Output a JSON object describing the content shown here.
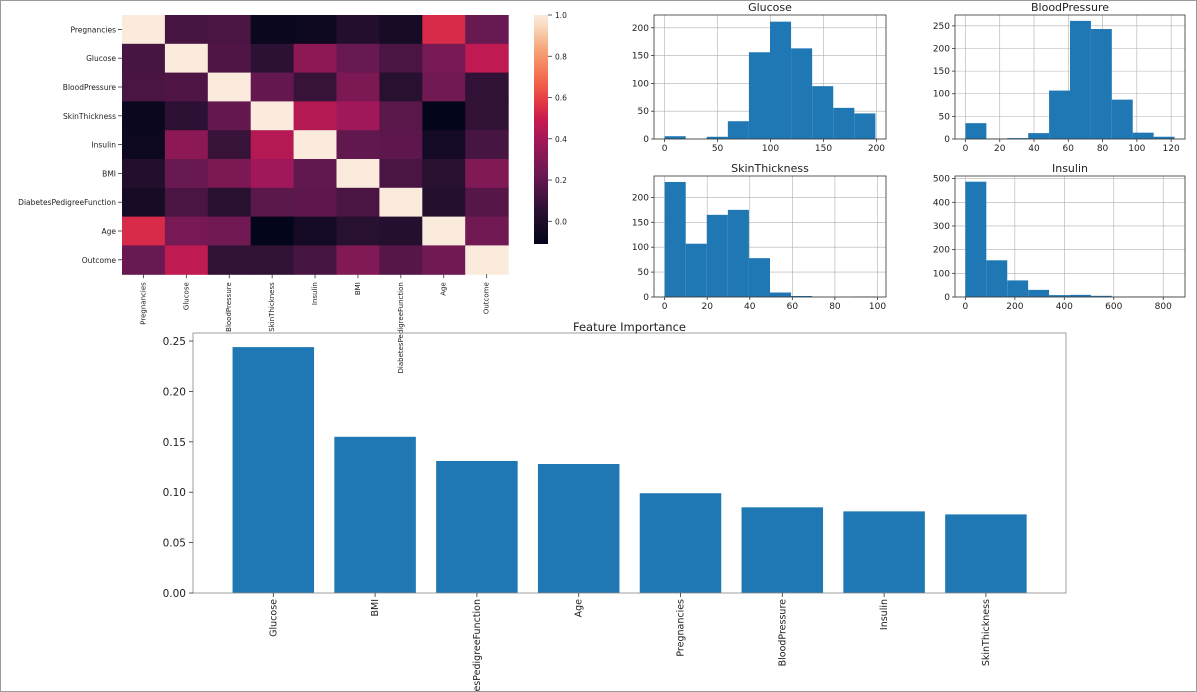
{
  "colors": {
    "bar_fill": "#1f77b4",
    "heatmap_colormap": "rocket",
    "grid": "#b0b0b0"
  },
  "chart_data": [
    {
      "type": "heatmap",
      "title": "",
      "labels": [
        "Pregnancies",
        "Glucose",
        "BloodPressure",
        "SkinThickness",
        "Insulin",
        "BMI",
        "DiabetesPedigreeFunction",
        "Age",
        "Outcome"
      ],
      "matrix": [
        [
          1.0,
          0.13,
          0.14,
          -0.08,
          -0.07,
          0.02,
          -0.03,
          0.54,
          0.22
        ],
        [
          0.13,
          1.0,
          0.15,
          0.06,
          0.33,
          0.22,
          0.14,
          0.26,
          0.47
        ],
        [
          0.14,
          0.15,
          1.0,
          0.21,
          0.09,
          0.28,
          0.04,
          0.24,
          0.07
        ],
        [
          -0.08,
          0.06,
          0.21,
          1.0,
          0.44,
          0.39,
          0.18,
          -0.11,
          0.07
        ],
        [
          -0.07,
          0.33,
          0.09,
          0.44,
          1.0,
          0.2,
          0.19,
          -0.04,
          0.13
        ],
        [
          0.02,
          0.22,
          0.28,
          0.39,
          0.2,
          1.0,
          0.14,
          0.04,
          0.29
        ],
        [
          -0.03,
          0.14,
          0.04,
          0.18,
          0.19,
          0.14,
          1.0,
          0.03,
          0.17
        ],
        [
          0.54,
          0.26,
          0.24,
          -0.11,
          -0.04,
          0.04,
          0.03,
          1.0,
          0.24
        ],
        [
          0.22,
          0.47,
          0.07,
          0.07,
          0.13,
          0.29,
          0.17,
          0.24,
          1.0
        ]
      ],
      "colorbar_ticks": [
        "0.0",
        "0.2",
        "0.4",
        "0.6",
        "0.8",
        "1.0"
      ],
      "vmin": -0.11,
      "vmax": 1.0
    },
    {
      "type": "bar",
      "subtype": "histogram",
      "title": "Glucose",
      "bin_edges": [
        0,
        19.9,
        39.8,
        59.7,
        79.6,
        99.5,
        119.4,
        139.3,
        159.2,
        179.1,
        199
      ],
      "values": [
        5,
        0,
        4,
        32,
        156,
        211,
        163,
        95,
        56,
        46
      ],
      "xlim": [
        -10,
        209
      ],
      "ylim": [
        0,
        223
      ],
      "xticks": [
        0,
        50,
        100,
        150,
        200
      ],
      "yticks": [
        0,
        50,
        100,
        150,
        200
      ],
      "grid": true
    },
    {
      "type": "bar",
      "subtype": "histogram",
      "title": "BloodPressure",
      "bin_edges": [
        0,
        12.2,
        24.4,
        36.6,
        48.8,
        61,
        73.2,
        85.4,
        97.6,
        109.8,
        122
      ],
      "values": [
        35,
        1,
        2,
        13,
        107,
        261,
        243,
        87,
        14,
        5
      ],
      "xlim": [
        -6.1,
        128.1
      ],
      "ylim": [
        0,
        274
      ],
      "xticks": [
        0,
        20,
        40,
        60,
        80,
        100,
        120
      ],
      "yticks": [
        0,
        50,
        100,
        150,
        200,
        250
      ],
      "grid": true
    },
    {
      "type": "bar",
      "subtype": "histogram",
      "title": "SkinThickness",
      "bin_edges": [
        0,
        9.9,
        19.8,
        29.7,
        39.6,
        49.5,
        59.4,
        69.3,
        79.2,
        89.1,
        99
      ],
      "values": [
        231,
        107,
        165,
        175,
        78,
        9,
        2,
        0,
        0,
        1
      ],
      "xlim": [
        -5,
        104
      ],
      "ylim": [
        0,
        243
      ],
      "xticks": [
        0,
        20,
        40,
        60,
        80,
        100
      ],
      "yticks": [
        0,
        50,
        100,
        150,
        200
      ],
      "grid": true
    },
    {
      "type": "bar",
      "subtype": "histogram",
      "title": "Insulin",
      "bin_edges": [
        0,
        84.6,
        169.2,
        253.8,
        338.4,
        423,
        507.6,
        592.2,
        676.8,
        761.4,
        846
      ],
      "values": [
        487,
        155,
        70,
        30,
        8,
        9,
        5,
        1,
        2,
        1
      ],
      "xlim": [
        -42,
        888
      ],
      "ylim": [
        0,
        511
      ],
      "xticks": [
        0,
        200,
        400,
        600,
        800
      ],
      "yticks": [
        0,
        100,
        200,
        300,
        400,
        500
      ],
      "grid": true
    },
    {
      "type": "bar",
      "title": "Feature Importance",
      "categories": [
        "Glucose",
        "BMI",
        "DiabetesPedigreeFunction",
        "Age",
        "Pregnancies",
        "BloodPressure",
        "Insulin",
        "SkinThickness"
      ],
      "values": [
        0.244,
        0.155,
        0.131,
        0.128,
        0.099,
        0.085,
        0.081,
        0.078
      ],
      "ylim": [
        0,
        0.258
      ],
      "yticks": [
        "0.00",
        "0.05",
        "0.10",
        "0.15",
        "0.20",
        "0.25"
      ],
      "xlabel": "",
      "ylabel": "",
      "grid": false
    }
  ]
}
